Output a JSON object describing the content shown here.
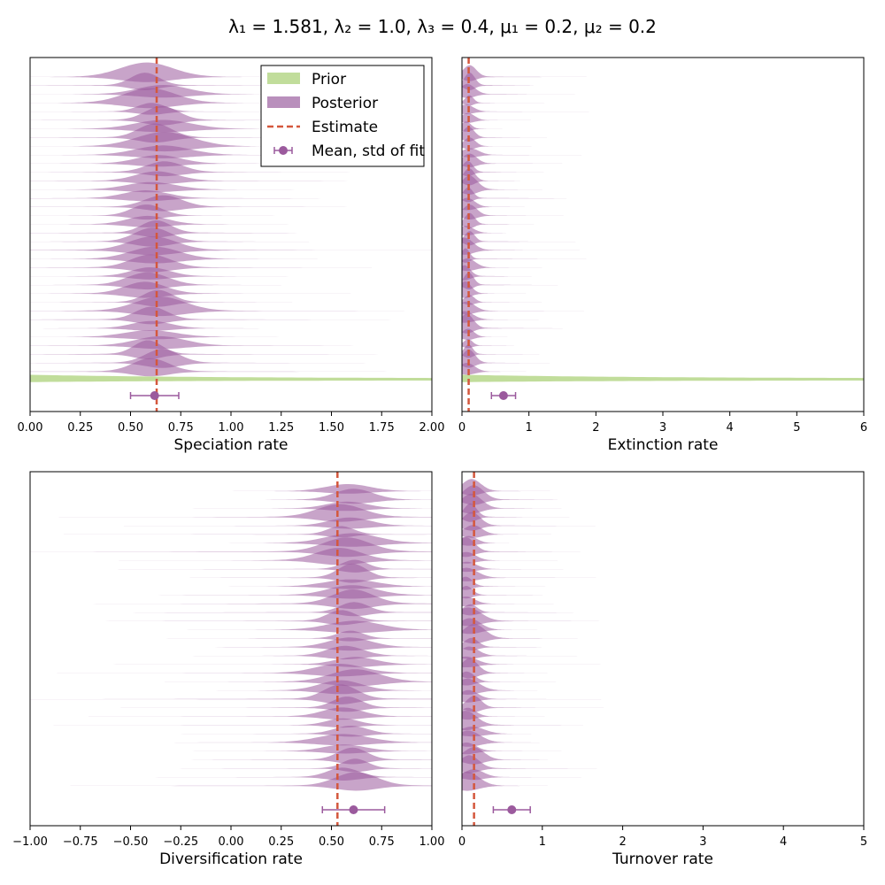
{
  "figure": {
    "title": "λ₁ = 1.581, λ₂ = 1.0, λ₃ = 0.4, μ₁ = 0.2, μ₂ = 0.2"
  },
  "legend": {
    "placement": "top-right (first panel)",
    "entries": [
      {
        "label": "Prior",
        "kind": "patch",
        "color": "#c1dd9b"
      },
      {
        "label": "Posterior",
        "kind": "patch",
        "color": "#b98fbc"
      },
      {
        "label": "Estimate",
        "kind": "dashed-line",
        "color": "#d4573c"
      },
      {
        "label": "Mean, std of fit",
        "kind": "errorbar",
        "color": "#9b5a9d"
      }
    ]
  },
  "colors": {
    "prior": "#c1dd9b",
    "posterior": "#9b5a9d",
    "estimate": "#d4573c",
    "fit": "#9b5a9d"
  },
  "chart_data": [
    {
      "type": "area",
      "xlabel": "Speciation rate",
      "xlim": [
        0,
        2
      ],
      "xticks": [
        "0.00",
        "0.25",
        "0.50",
        "0.75",
        "1.00",
        "1.25",
        "1.50",
        "1.75",
        "2.00"
      ],
      "grid": false,
      "n_posteriors": 35,
      "posterior_center": 0.62,
      "posterior_spread": 0.11,
      "posterior_tail": 1.25,
      "prior": {
        "shape": "decaying",
        "start": 0,
        "end": 2
      },
      "estimate": 0.63,
      "fit": {
        "mean": 0.62,
        "std": 0.12
      }
    },
    {
      "type": "area",
      "xlabel": "Extinction rate",
      "xlim": [
        0,
        6
      ],
      "xticks": [
        "0",
        "1",
        "2",
        "3",
        "4",
        "5",
        "6"
      ],
      "grid": false,
      "n_posteriors": 35,
      "posterior_center": 0.08,
      "posterior_spread": 0.1,
      "posterior_tail": 1.6,
      "prior": {
        "shape": "decaying",
        "start": 0,
        "end": 6
      },
      "estimate": 0.1,
      "fit": {
        "mean": 0.62,
        "std": 0.18
      }
    },
    {
      "type": "area",
      "xlabel": "Diversification rate",
      "xlim": [
        -1,
        1
      ],
      "xticks": [
        "−1.00",
        "−0.75",
        "−0.50",
        "−0.25",
        "0.00",
        "0.25",
        "0.50",
        "0.75",
        "1.00"
      ],
      "grid": false,
      "n_posteriors": 35,
      "posterior_center": 0.58,
      "posterior_spread": 0.1,
      "posterior_tail": 1.4,
      "prior": null,
      "estimate": 0.53,
      "fit": {
        "mean": 0.61,
        "std": 0.155
      }
    },
    {
      "type": "area",
      "xlabel": "Turnover rate",
      "xlim": [
        0,
        5
      ],
      "xticks": [
        "0",
        "1",
        "2",
        "3",
        "4",
        "5"
      ],
      "grid": false,
      "n_posteriors": 35,
      "posterior_center": 0.1,
      "posterior_spread": 0.12,
      "posterior_tail": 1.5,
      "prior": null,
      "estimate": 0.15,
      "fit": {
        "mean": 0.62,
        "std": 0.23
      }
    }
  ]
}
